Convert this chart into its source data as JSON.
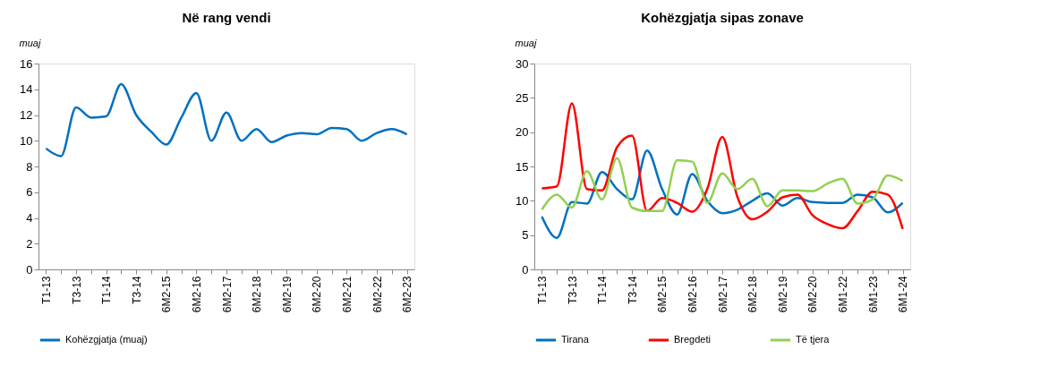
{
  "chart_data": [
    {
      "type": "line",
      "title": "Në rang vendi",
      "ylabel": "muaj",
      "categories": [
        "T1-13",
        null,
        "T3-13",
        null,
        "T1-14",
        null,
        "T3-14",
        null,
        "6M2-15",
        null,
        "6M2-16",
        null,
        "6M2-17",
        null,
        "6M2-18",
        null,
        "6M2-19",
        null,
        "6M2-20",
        null,
        "6M2-21",
        null,
        "6M2-22",
        null,
        "6M2-23"
      ],
      "series": [
        {
          "name": "Kohëzgjatja (muaj)",
          "color": "#0070c0",
          "values": [
            9.4,
            8.8,
            12.6,
            11.8,
            11.9,
            14.4,
            12.0,
            10.7,
            9.7,
            11.8,
            13.7,
            10.0,
            12.2,
            10.0,
            10.9,
            9.9,
            10.4,
            10.6,
            10.5,
            11.0,
            10.9,
            10.0,
            10.6,
            10.9,
            10.5
          ]
        }
      ],
      "ylim": [
        0,
        16
      ],
      "yticks": [
        0,
        2,
        4,
        6,
        8,
        10,
        12,
        14,
        16
      ],
      "grid": false,
      "legend": "bottom",
      "marker": "none",
      "line_style": "solid"
    },
    {
      "type": "line",
      "title": "Kohëzgjatja sipas zonave",
      "ylabel": "muaj",
      "categories": [
        "T1-13",
        null,
        "T3-13",
        null,
        "T1-14",
        null,
        "T3-14",
        null,
        "6M2-15",
        null,
        "6M2-16",
        null,
        "6M2-17",
        null,
        "6M2-18",
        null,
        "6M2-19",
        null,
        "6M2-20",
        null,
        "6M1-22",
        null,
        "6M1-23",
        null,
        "6M1-24"
      ],
      "series": [
        {
          "name": "Tirana",
          "color": "#0070c0",
          "values": [
            7.7,
            4.6,
            9.8,
            9.6,
            14.2,
            11.7,
            10.2,
            17.3,
            11.7,
            8.0,
            13.9,
            10.0,
            8.2,
            8.7,
            10.0,
            11.1,
            9.3,
            10.4,
            9.8,
            9.7,
            9.7,
            10.9,
            10.5,
            8.3,
            9.7
          ]
        },
        {
          "name": "Bregdeti",
          "color": "#ff0000",
          "values": [
            11.8,
            12.1,
            24.2,
            11.7,
            11.5,
            17.8,
            19.5,
            8.5,
            10.4,
            9.7,
            8.4,
            11.7,
            19.3,
            10.6,
            7.3,
            8.4,
            10.5,
            10.9,
            7.9,
            6.6,
            6.0,
            8.5,
            11.3,
            10.9,
            5.9
          ]
        },
        {
          "name": "Të tjera",
          "color": "#92d050",
          "values": [
            8.7,
            10.9,
            9.0,
            14.3,
            10.2,
            16.2,
            9.0,
            8.5,
            8.5,
            15.9,
            15.7,
            9.7,
            14.0,
            11.7,
            13.2,
            9.2,
            11.5,
            11.5,
            11.4,
            12.5,
            13.2,
            9.6,
            10.2,
            13.7,
            12.9
          ]
        }
      ],
      "ylim": [
        0,
        30
      ],
      "yticks": [
        0,
        5,
        10,
        15,
        20,
        25,
        30
      ],
      "grid": false,
      "legend": "bottom",
      "marker": "none",
      "line_style": "solid"
    }
  ]
}
